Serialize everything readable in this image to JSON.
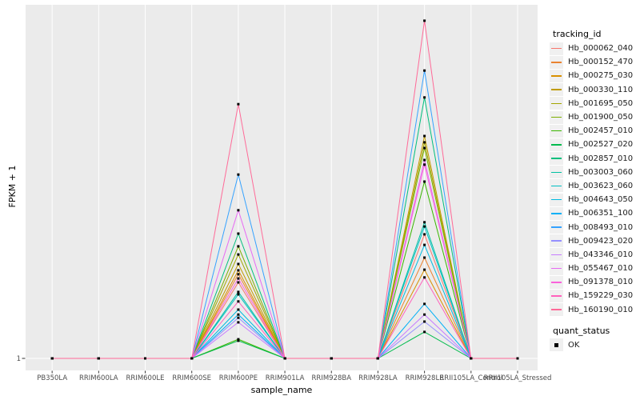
{
  "chart_data": {
    "type": "line",
    "title": "",
    "xlabel": "sample_name",
    "ylabel": "FPKM + 1",
    "y_tick_label": "1",
    "baseline_value": 1,
    "y_scale_note": "Only the value 1 is labeled on the y axis (baseline). Series values are expressed as fraction of panel height above the FPKM+1=1 baseline, estimated from pixels; absolute scale not shown.",
    "legend_position": "right",
    "marker": "black square",
    "panel_background": "#EBEBEB",
    "grid_color": "#FFFFFF",
    "tick_label_color": "#4D4D4D",
    "categories": [
      "PB350LA",
      "RRIM600LA",
      "RRIM600LE",
      "RRIM600SE",
      "RRIM600PE",
      "RRIM901LA",
      "RRIM928BA",
      "RRIM928LA",
      "RRIM928LE",
      "RRII105LA_Control",
      "RRII105LA_Stressed"
    ],
    "series": [
      {
        "name": "Hb_000062_040",
        "color": "#F8766D",
        "values": [
          0,
          0,
          0,
          0,
          0.215,
          0,
          0,
          0,
          0.351,
          0,
          0
        ]
      },
      {
        "name": "Hb_000152_470",
        "color": "#EA8331",
        "values": [
          0,
          0,
          0,
          0,
          0.238,
          0,
          0,
          0,
          0.285,
          0,
          0
        ]
      },
      {
        "name": "Hb_000275_030",
        "color": "#D89000",
        "values": [
          0,
          0,
          0,
          0,
          0.249,
          0,
          0,
          0,
          0.251,
          0,
          0
        ]
      },
      {
        "name": "Hb_000330_110",
        "color": "#C09B00",
        "values": [
          0,
          0,
          0,
          0,
          0.267,
          0,
          0,
          0,
          0.629,
          0,
          0
        ]
      },
      {
        "name": "Hb_001695_050",
        "color": "#A3A500",
        "values": [
          0,
          0,
          0,
          0,
          0.294,
          0,
          0,
          0,
          0.611,
          0,
          0
        ]
      },
      {
        "name": "Hb_001900_050",
        "color": "#7CAE00",
        "values": [
          0,
          0,
          0,
          0,
          0.317,
          0,
          0,
          0,
          0.595,
          0,
          0
        ]
      },
      {
        "name": "Hb_002457_010",
        "color": "#39B600",
        "values": [
          0,
          0,
          0,
          0,
          0.054,
          0,
          0,
          0,
          0.5,
          0,
          0
        ]
      },
      {
        "name": "Hb_002527_020",
        "color": "#00BB4E",
        "values": [
          0,
          0,
          0,
          0,
          0.05,
          0,
          0,
          0,
          0.075,
          0,
          0
        ]
      },
      {
        "name": "Hb_002857_010",
        "color": "#00BF7D",
        "values": [
          0,
          0,
          0,
          0,
          0.353,
          0,
          0,
          0,
          0.738,
          0,
          0
        ]
      },
      {
        "name": "Hb_003003_060",
        "color": "#00C1A3",
        "values": [
          0,
          0,
          0,
          0,
          0.188,
          0,
          0,
          0,
          0.385,
          0,
          0
        ]
      },
      {
        "name": "Hb_003623_060",
        "color": "#00BFC4",
        "values": [
          0,
          0,
          0,
          0,
          0.181,
          0,
          0,
          0,
          0.373,
          0,
          0
        ]
      },
      {
        "name": "Hb_004643_050",
        "color": "#00BAE0",
        "values": [
          0,
          0,
          0,
          0,
          0.138,
          0,
          0,
          0,
          0.321,
          0,
          0
        ]
      },
      {
        "name": "Hb_006351_100",
        "color": "#00B0F6",
        "values": [
          0,
          0,
          0,
          0,
          0.124,
          0,
          0,
          0,
          0.154,
          0,
          0
        ]
      },
      {
        "name": "Hb_008493_010",
        "color": "#35A2FF",
        "values": [
          0,
          0,
          0,
          0,
          0.52,
          0,
          0,
          0,
          0.814,
          0,
          0
        ]
      },
      {
        "name": "Hb_009423_020",
        "color": "#9590FF",
        "values": [
          0,
          0,
          0,
          0,
          0.115,
          0,
          0,
          0,
          0.104,
          0,
          0
        ]
      },
      {
        "name": "Hb_043346_010",
        "color": "#C77CFF",
        "values": [
          0,
          0,
          0,
          0,
          0.102,
          0,
          0,
          0,
          0.124,
          0,
          0
        ]
      },
      {
        "name": "Hb_055467_010",
        "color": "#E76BF3",
        "values": [
          0,
          0,
          0,
          0,
          0.419,
          0,
          0,
          0,
          0.561,
          0,
          0
        ]
      },
      {
        "name": "Hb_091378_010",
        "color": "#FA62DB",
        "values": [
          0,
          0,
          0,
          0,
          0.226,
          0,
          0,
          0,
          0.548,
          0,
          0
        ]
      },
      {
        "name": "Hb_159229_030",
        "color": "#FF62BC",
        "values": [
          0,
          0,
          0,
          0,
          0.161,
          0,
          0,
          0,
          0.229,
          0,
          0
        ]
      },
      {
        "name": "Hb_160190_010",
        "color": "#FF6A98",
        "values": [
          0,
          0,
          0,
          0,
          0.719,
          0,
          0,
          0,
          0.955,
          0,
          0
        ]
      }
    ]
  },
  "legend": {
    "tracking_title": "tracking_id",
    "quant_title": "quant_status",
    "quant_items": [
      {
        "label": "OK",
        "marker": "black-square"
      }
    ]
  }
}
